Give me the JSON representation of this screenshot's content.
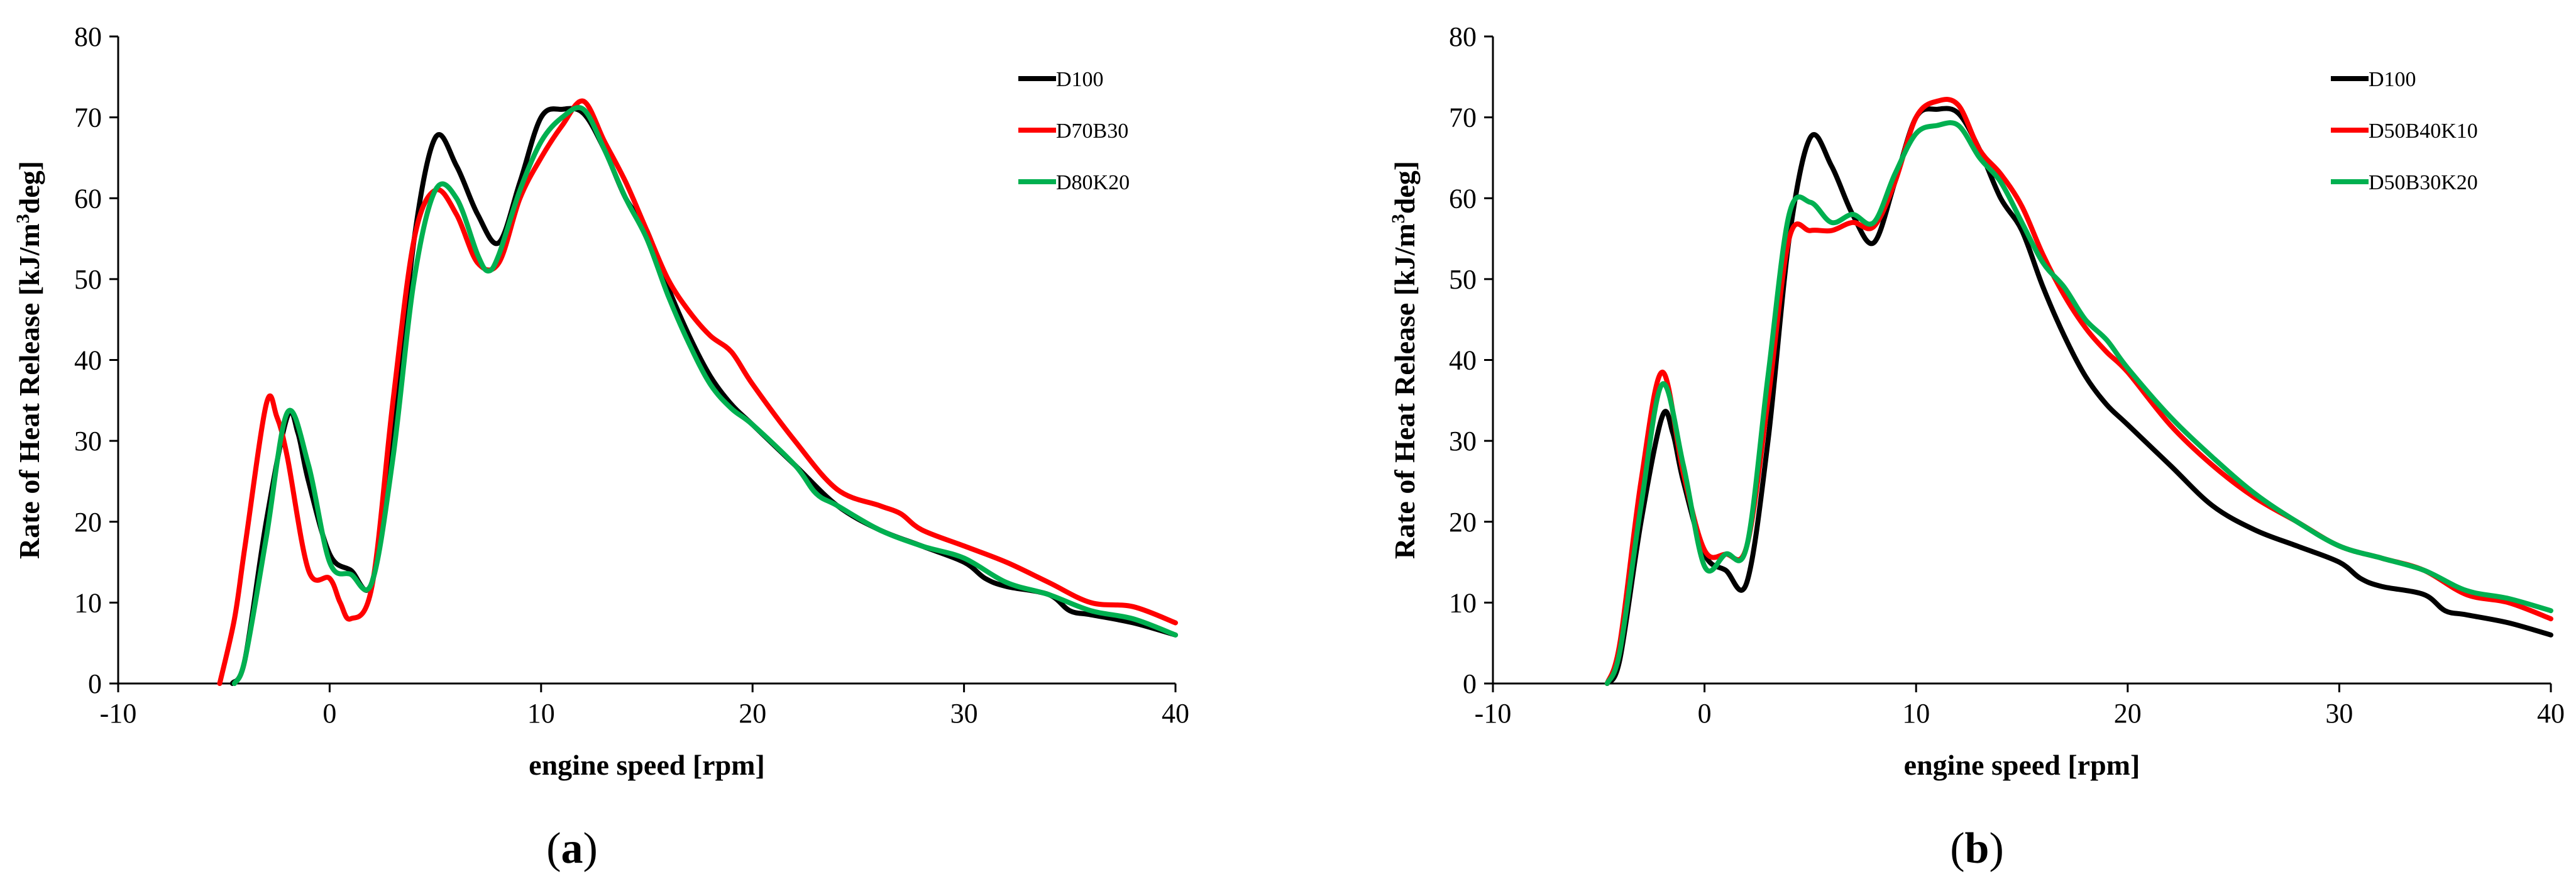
{
  "chart_data": [
    {
      "type": "line",
      "panel_label": {
        "open": "(",
        "letter": "a",
        "close": ")"
      },
      "xlabel": "engine speed [rpm]",
      "ylabel_parts": [
        "Rate of Heat Release [kJ/m",
        "3",
        "deg]"
      ],
      "xlim": [
        -10,
        40
      ],
      "ylim": [
        0,
        80
      ],
      "xticks": [
        -10,
        0,
        10,
        20,
        30,
        40
      ],
      "yticks": [
        0,
        10,
        20,
        30,
        40,
        50,
        60,
        70,
        80
      ],
      "legend_position": "top-right",
      "series": [
        {
          "name": "D100",
          "color": "#000000",
          "x": [
            -4.6,
            -4,
            -3,
            -2,
            -1.5,
            -1,
            0,
            1,
            2,
            3,
            4,
            5,
            6,
            7,
            8,
            9,
            10,
            11,
            12,
            13,
            14,
            15,
            16,
            17,
            18,
            19,
            20,
            22,
            24,
            26,
            28,
            30,
            31,
            32,
            34,
            35,
            36,
            38,
            40
          ],
          "y": [
            0,
            3,
            20,
            33,
            31,
            25,
            16,
            14,
            12.5,
            30,
            55,
            67.5,
            64,
            58,
            54.5,
            62,
            70,
            71,
            70.5,
            66,
            60,
            56,
            49,
            43,
            38,
            34.5,
            32,
            27,
            22,
            19,
            17,
            15,
            13,
            12,
            11,
            9,
            8.5,
            7.5,
            6
          ]
        },
        {
          "name": "D70B30",
          "color": "#ff0000",
          "x": [
            -5.2,
            -4.5,
            -4,
            -3,
            -2.5,
            -2,
            -1,
            0,
            0.5,
            1,
            2,
            3,
            4,
            5,
            6,
            7,
            8,
            9,
            10,
            11,
            12,
            13,
            14,
            15,
            16,
            17,
            18,
            19,
            20,
            22,
            24,
            26,
            27,
            28,
            30,
            32,
            34,
            36,
            38,
            40
          ],
          "y": [
            0,
            8,
            17,
            34.5,
            33,
            28,
            14,
            13,
            10,
            8,
            12,
            35,
            55,
            61,
            58,
            52,
            52,
            60,
            65,
            69,
            72,
            67,
            62,
            56,
            50,
            46,
            43,
            41,
            37,
            30,
            24,
            22,
            21,
            19,
            17,
            15,
            12.5,
            10,
            9.5,
            7.5
          ]
        },
        {
          "name": "D80K20",
          "color": "#00b050",
          "x": [
            -4.5,
            -4,
            -3,
            -2,
            -1,
            0,
            1,
            2,
            3,
            4,
            5,
            6,
            7,
            7.5,
            8,
            9,
            10,
            11,
            12,
            13,
            14,
            15,
            16,
            17,
            18,
            19,
            20,
            22,
            23,
            24,
            26,
            28,
            30,
            32,
            34,
            36,
            38,
            40
          ],
          "y": [
            0,
            3,
            18,
            33.5,
            27,
            15,
            13.5,
            12.5,
            28,
            50,
            61,
            60,
            53,
            51,
            53,
            61,
            67,
            70,
            71,
            66,
            60,
            55,
            48,
            42,
            37,
            34,
            32,
            27,
            23.5,
            22,
            19,
            17,
            15.5,
            12.5,
            11,
            9,
            8,
            6
          ]
        }
      ]
    },
    {
      "type": "line",
      "panel_label": {
        "open": "(",
        "letter": "b",
        "close": ")"
      },
      "xlabel": "engine speed [rpm]",
      "ylabel_parts": [
        "Rate of Heat Release [kJ/m",
        "3",
        "deg]"
      ],
      "xlim": [
        -10,
        40
      ],
      "ylim": [
        0,
        80
      ],
      "xticks": [
        -10,
        0,
        10,
        20,
        30,
        40
      ],
      "yticks": [
        0,
        10,
        20,
        30,
        40,
        50,
        60,
        70,
        80
      ],
      "legend_position": "top-right",
      "series": [
        {
          "name": "D100",
          "color": "#000000",
          "x": [
            -4.6,
            -4,
            -3,
            -2,
            -1.5,
            -1,
            0,
            1,
            2,
            3,
            4,
            5,
            6,
            7,
            8,
            9,
            10,
            11,
            12,
            13,
            14,
            15,
            16,
            17,
            18,
            19,
            20,
            22,
            24,
            26,
            28,
            30,
            31,
            32,
            34,
            35,
            36,
            38,
            40
          ],
          "y": [
            0,
            3,
            20,
            33,
            31,
            25,
            16,
            14,
            12.5,
            30,
            55,
            67.5,
            64,
            58,
            54.5,
            62,
            70,
            71,
            70.5,
            66,
            60,
            56,
            49,
            43,
            38,
            34.5,
            32,
            27,
            22,
            19,
            17,
            15,
            13,
            12,
            11,
            9,
            8.5,
            7.5,
            6
          ]
        },
        {
          "name": "D50B40K10",
          "color": "#ff0000",
          "x": [
            -4.6,
            -4,
            -3,
            -2,
            -1,
            0,
            1,
            2,
            3,
            4,
            5,
            6,
            7,
            8,
            9,
            10,
            11,
            12,
            13,
            14,
            15,
            16,
            17,
            18,
            19,
            20,
            22,
            24,
            26,
            28,
            30,
            32,
            34,
            36,
            38,
            40
          ],
          "y": [
            0,
            5,
            25,
            38.5,
            26,
            16.5,
            16,
            17,
            35,
            55,
            56,
            56,
            57,
            56.5,
            62,
            70,
            72,
            71.5,
            66,
            63,
            59,
            53,
            48,
            44,
            41,
            38.5,
            32,
            27,
            23,
            20,
            17,
            15.5,
            14,
            11,
            10,
            8
          ]
        },
        {
          "name": "D50B30K20",
          "color": "#00b050",
          "x": [
            -4.6,
            -4,
            -3,
            -2,
            -1,
            0,
            1,
            2,
            3,
            4,
            5,
            6,
            7,
            8,
            9,
            10,
            11,
            12,
            13,
            14,
            15,
            16,
            17,
            18,
            19,
            20,
            22,
            24,
            26,
            28,
            30,
            32,
            34,
            36,
            38,
            40
          ],
          "y": [
            0,
            4,
            22,
            37,
            27,
            14.5,
            16,
            17,
            38,
            58,
            59.5,
            57,
            58,
            57,
            63,
            68,
            69,
            69,
            65,
            62,
            57,
            52,
            49,
            45,
            42.5,
            39,
            33,
            28,
            23.5,
            20,
            17,
            15.5,
            14,
            11.5,
            10.5,
            9
          ]
        }
      ]
    }
  ]
}
